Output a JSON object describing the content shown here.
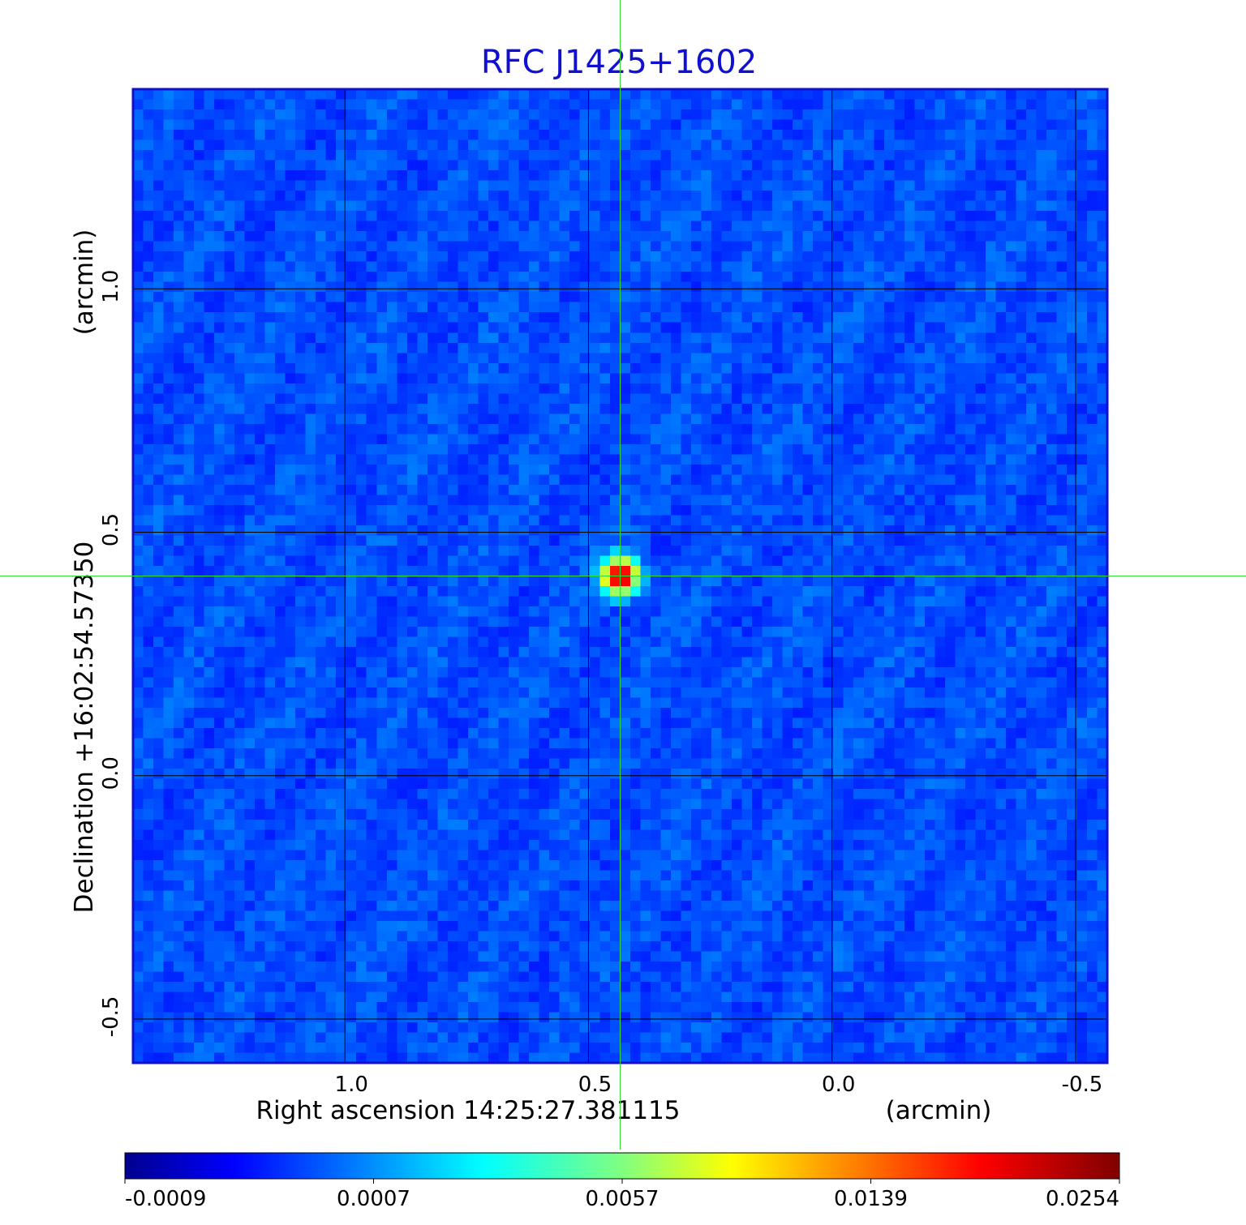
{
  "chart_data": {
    "type": "heatmap",
    "title": "RFC J1425+1602",
    "xlabel": "Right ascension  14:25:27.381115",
    "x_unit": "(arcmin)",
    "ylabel": "Declination  +16:02:54.57350",
    "y_unit": "(arcmin)",
    "xlim": [
      1.435,
      -0.565
    ],
    "ylim": [
      -0.59,
      1.41
    ],
    "x_ticks": [
      1.0,
      0.5,
      0.0,
      -0.5
    ],
    "x_tick_labels": [
      "1.0",
      "0.5",
      "0.0",
      "-0.5"
    ],
    "y_ticks": [
      1.0,
      0.5,
      0.0,
      -0.5
    ],
    "y_tick_labels": [
      "1.0",
      "0.5",
      "0.0",
      "-0.5"
    ],
    "grid": true,
    "source": {
      "x": 0.435,
      "y": 0.41,
      "peak": 0.0254
    },
    "crosshair": {
      "x": 0.435,
      "y": 0.41
    },
    "background_level": 0.0001,
    "colorbar": {
      "colormap": "jet",
      "position": "bottom",
      "tick_labels": [
        "-0.0009",
        "0.0007",
        "0.0057",
        "0.0139",
        "0.0254"
      ]
    },
    "colors": {
      "title": "#1010d0",
      "frame": "#1010d0",
      "grid": "#000000",
      "crosshair": "#33dd33"
    }
  }
}
